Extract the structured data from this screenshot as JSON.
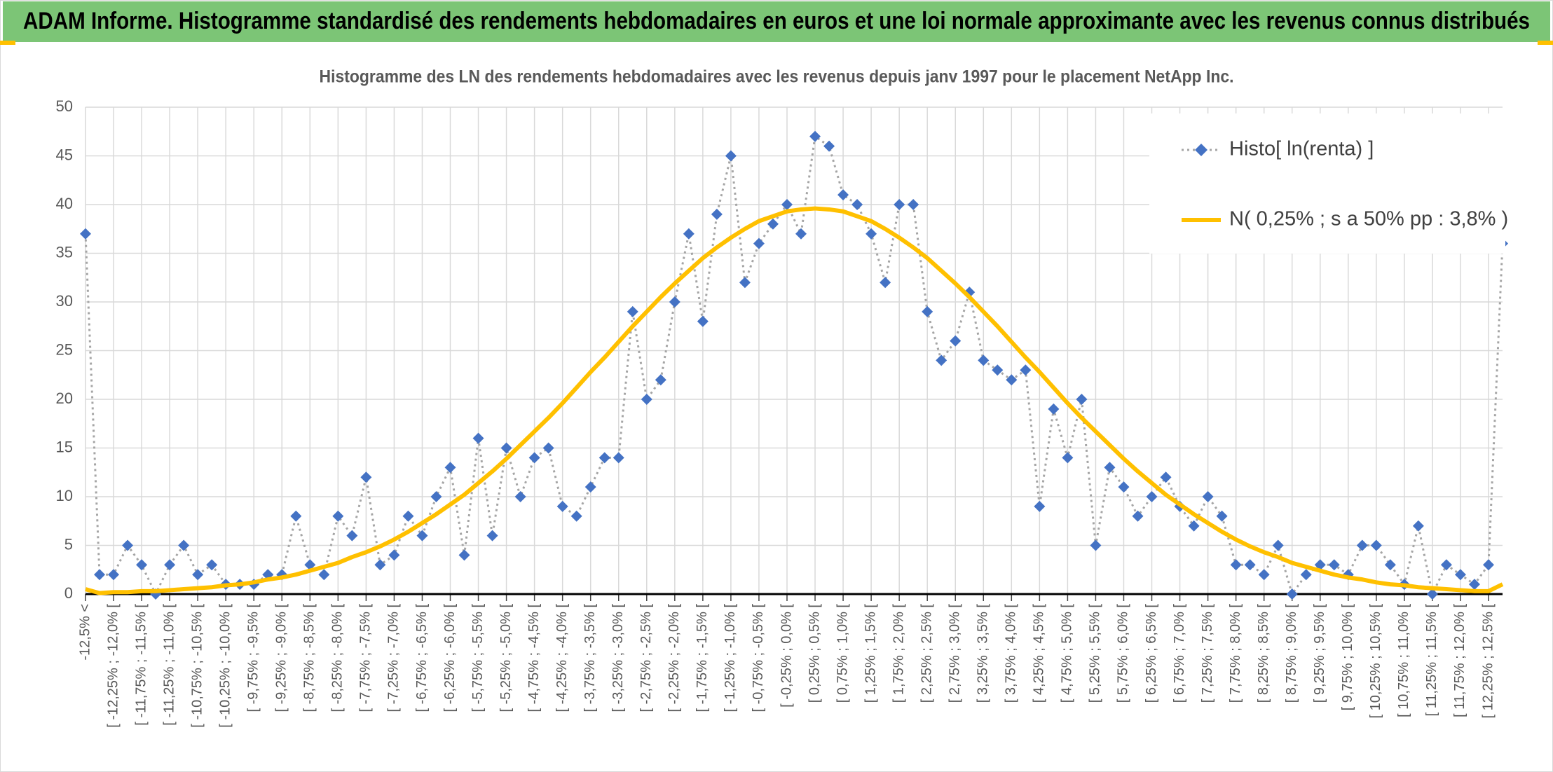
{
  "chart_data": {
    "type": "line",
    "title": "ADAM Informe. Histogramme standardisé des rendements hebdomadaires en euros et une loi normale approximante avec les revenus connus distribués",
    "subtitle": "Histogramme des LN des rendements hebdomadaires avec les revenus depuis janv 1997 pour le placement NetApp Inc.",
    "categories": [
      "-12,5% <",
      null,
      "[ -12,25% ; -12,0% [",
      null,
      "[ -11,75% ; -11,5% [",
      null,
      "[ -11,25% ; -11,0% [",
      null,
      "[ -10,75% ; -10,5% [",
      null,
      "[ -10,25% ; -10,0% [",
      null,
      "[ -9,75% ; -9,5% [",
      null,
      "[ -9,25% ; -9,0% [",
      null,
      "[ -8,75% ; -8,5% [",
      null,
      "[ -8,25% ; -8,0% [",
      null,
      "[ -7,75% ; -7,5% [",
      null,
      "[ -7,25% ; -7,0% [",
      null,
      "[ -6,75% ; -6,5% [",
      null,
      "[ -6,25% ; -6,0% [",
      null,
      "[ -5,75% ; -5,5% [",
      null,
      "[ -5,25% ; -5,0% [",
      null,
      "[ -4,75% ; -4,5% [",
      null,
      "[ -4,25% ; -4,0% [",
      null,
      "[ -3,75% ; -3,5% [",
      null,
      "[ -3,25% ; -3,0% [",
      null,
      "[ -2,75% ; -2,5% [",
      null,
      "[ -2,25% ; -2,0% [",
      null,
      "[ -1,75% ; -1,5% [",
      null,
      "[ -1,25% ; -1,0% [",
      null,
      "[ -0,75% ; -0,5% [",
      null,
      "[ -0,25% ; 0,0% [",
      null,
      "[ 0,25% ; 0,5% [",
      null,
      "[ 0,75% ; 1,0% [",
      null,
      "[ 1,25% ; 1,5% [",
      null,
      "[ 1,75% ; 2,0% [",
      null,
      "[ 2,25% ; 2,5% [",
      null,
      "[ 2,75% ; 3,0% [",
      null,
      "[ 3,25% ; 3,5% [",
      null,
      "[ 3,75% ; 4,0% [",
      null,
      "[ 4,25% ; 4,5% [",
      null,
      "[ 4,75% ; 5,0% [",
      null,
      "[ 5,25% ; 5,5% [",
      null,
      "[ 5,75% ; 6,0% [",
      null,
      "[ 6,25% ; 6,5% [",
      null,
      "[ 6,75% ; 7,0% [",
      null,
      "[ 7,25% ; 7,5% [",
      null,
      "[ 7,75% ; 8,0% [",
      null,
      "[ 8,25% ; 8,5% [",
      null,
      "[ 8,75% ; 9,0% [",
      null,
      "[ 9,25% ; 9,5% [",
      null,
      "[ 9,75% ; 10,0% [",
      null,
      "[ 10,25% ; 10,5% [",
      null,
      "[ 10,75% ; 11,0% [",
      null,
      "[ 11,25% ; 11,5% [",
      null,
      "[ 11,75% ; 12,0% [",
      null,
      "[ 12,25% ; 12,5% [",
      null
    ],
    "series": [
      {
        "name": "Histo[ ln(renta) ]",
        "color": "#4472c4",
        "line_color": "#a5a5a5",
        "values": [
          37,
          2,
          2,
          5,
          3,
          0,
          3,
          5,
          2,
          3,
          1,
          1,
          1,
          2,
          2,
          8,
          3,
          2,
          8,
          6,
          12,
          3,
          4,
          8,
          6,
          10,
          13,
          4,
          16,
          6,
          15,
          10,
          14,
          15,
          9,
          8,
          11,
          14,
          14,
          29,
          20,
          22,
          30,
          37,
          28,
          39,
          45,
          32,
          36,
          38,
          40,
          37,
          47,
          46,
          41,
          40,
          37,
          32,
          40,
          40,
          29,
          24,
          26,
          31,
          24,
          23,
          22,
          23,
          9,
          19,
          14,
          20,
          5,
          13,
          11,
          8,
          10,
          12,
          9,
          7,
          10,
          8,
          3,
          3,
          2,
          5,
          0,
          2,
          3,
          3,
          2,
          5,
          5,
          3,
          1,
          7,
          0,
          3,
          2,
          1,
          3,
          36
        ]
      },
      {
        "name": "N( 0,25% ; s a 50% pp : 3,8% )",
        "color": "#ffc000",
        "values": [
          0.5,
          0.1,
          0.2,
          0.2,
          0.3,
          0.3,
          0.4,
          0.5,
          0.6,
          0.7,
          0.9,
          1.0,
          1.2,
          1.5,
          1.7,
          2.0,
          2.4,
          2.8,
          3.2,
          3.8,
          4.3,
          4.9,
          5.6,
          6.4,
          7.3,
          8.2,
          9.2,
          10.2,
          11.4,
          12.6,
          13.9,
          15.3,
          16.7,
          18.1,
          19.6,
          21.2,
          22.8,
          24.3,
          25.9,
          27.5,
          29.0,
          30.5,
          31.9,
          33.2,
          34.5,
          35.6,
          36.6,
          37.5,
          38.3,
          38.8,
          39.3,
          39.5,
          39.6,
          39.5,
          39.3,
          38.8,
          38.3,
          37.5,
          36.6,
          35.6,
          34.5,
          33.2,
          31.9,
          30.5,
          29.0,
          27.5,
          25.9,
          24.3,
          22.8,
          21.2,
          19.6,
          18.1,
          16.7,
          15.3,
          13.9,
          12.6,
          11.4,
          10.2,
          9.2,
          8.2,
          7.3,
          6.4,
          5.6,
          4.9,
          4.3,
          3.8,
          3.2,
          2.8,
          2.4,
          2.0,
          1.7,
          1.5,
          1.2,
          1.0,
          0.9,
          0.7,
          0.6,
          0.5,
          0.4,
          0.3,
          0.3,
          1.0
        ]
      }
    ],
    "ylim": [
      0,
      50
    ],
    "yticks": [
      0,
      5,
      10,
      15,
      20,
      25,
      30,
      35,
      40,
      45,
      50
    ],
    "grid": true,
    "legend": "top-right"
  }
}
